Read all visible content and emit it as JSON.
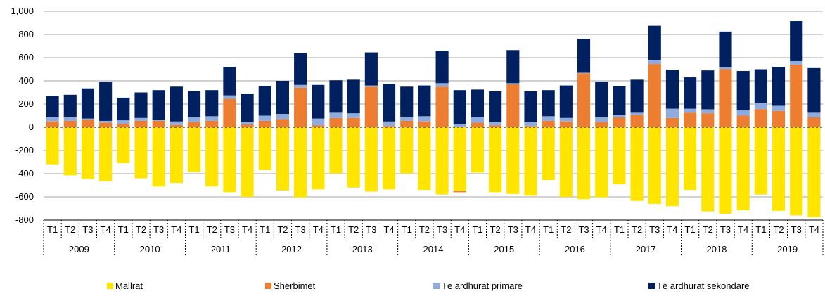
{
  "chart_data": {
    "type": "bar",
    "stacked": true,
    "title": "",
    "xlabel": "",
    "ylabel": "",
    "ylim": [
      -800,
      1000
    ],
    "yticks": [
      -800,
      -600,
      -400,
      -200,
      0,
      200,
      400,
      600,
      800,
      1000
    ],
    "ytick_labels": [
      "-800",
      "-600",
      "-400",
      "-200",
      "0",
      "200",
      "400",
      "600",
      "800",
      "1,000"
    ],
    "grid": true,
    "legend_position": "bottom",
    "quarter_labels": [
      "T1",
      "T2",
      "T3",
      "T4"
    ],
    "years": [
      "2009",
      "2010",
      "2011",
      "2012",
      "2013",
      "2014",
      "2015",
      "2016",
      "2017",
      "2018",
      "2019"
    ],
    "categories": [
      "2009 T1",
      "2009 T2",
      "2009 T3",
      "2009 T4",
      "2010 T1",
      "2010 T2",
      "2010 T3",
      "2010 T4",
      "2011 T1",
      "2011 T2",
      "2011 T3",
      "2011 T4",
      "2012 T1",
      "2012 T2",
      "2012 T3",
      "2012 T4",
      "2013 T1",
      "2013 T2",
      "2013 T3",
      "2013 T4",
      "2014 T1",
      "2014 T2",
      "2014 T3",
      "2014 T4",
      "2015 T1",
      "2015 T2",
      "2015 T3",
      "2015 T4",
      "2016 T1",
      "2016 T2",
      "2016 T3",
      "2016 T4",
      "2017 T1",
      "2017 T2",
      "2017 T3",
      "2017 T4",
      "2018 T1",
      "2018 T2",
      "2018 T3",
      "2018 T4",
      "2019 T1",
      "2019 T2",
      "2019 T3",
      "2019 T4"
    ],
    "series": [
      {
        "name": "Mallrat",
        "color": "#FFE500",
        "values": [
          -320,
          -415,
          -445,
          -465,
          -310,
          -440,
          -510,
          -480,
          -385,
          -510,
          -560,
          -600,
          -370,
          -545,
          -605,
          -535,
          -400,
          -520,
          -555,
          -535,
          -400,
          -540,
          -580,
          -550,
          -390,
          -560,
          -575,
          -590,
          -455,
          -600,
          -620,
          -605,
          -490,
          -635,
          -660,
          -680,
          -540,
          -725,
          -745,
          -715,
          -580,
          -720,
          -760,
          -775
        ]
      },
      {
        "name": "Shërbimet",
        "color": "#ED7D31",
        "values": [
          50,
          55,
          65,
          40,
          30,
          55,
          55,
          20,
          45,
          55,
          245,
          25,
          55,
          70,
          340,
          15,
          80,
          80,
          350,
          10,
          55,
          50,
          350,
          -10,
          40,
          15,
          370,
          10,
          55,
          50,
          465,
          45,
          85,
          105,
          545,
          80,
          125,
          120,
          500,
          100,
          155,
          140,
          540,
          85
        ]
      },
      {
        "name": "Të ardhurat primare",
        "color": "#8FAADC",
        "values": [
          35,
          35,
          10,
          15,
          30,
          25,
          10,
          30,
          45,
          40,
          30,
          20,
          45,
          45,
          25,
          60,
          45,
          40,
          10,
          40,
          35,
          45,
          30,
          30,
          45,
          30,
          10,
          35,
          40,
          30,
          5,
          45,
          20,
          20,
          35,
          80,
          35,
          35,
          15,
          45,
          55,
          45,
          30,
          40
        ]
      },
      {
        "name": "Të ardhurat sekondare",
        "color": "#002060",
        "values": [
          185,
          190,
          260,
          335,
          195,
          220,
          255,
          300,
          225,
          225,
          245,
          245,
          255,
          285,
          275,
          290,
          280,
          290,
          285,
          325,
          260,
          265,
          280,
          290,
          240,
          265,
          285,
          265,
          225,
          280,
          290,
          300,
          250,
          285,
          295,
          335,
          270,
          335,
          310,
          340,
          290,
          335,
          345,
          385
        ]
      }
    ]
  }
}
